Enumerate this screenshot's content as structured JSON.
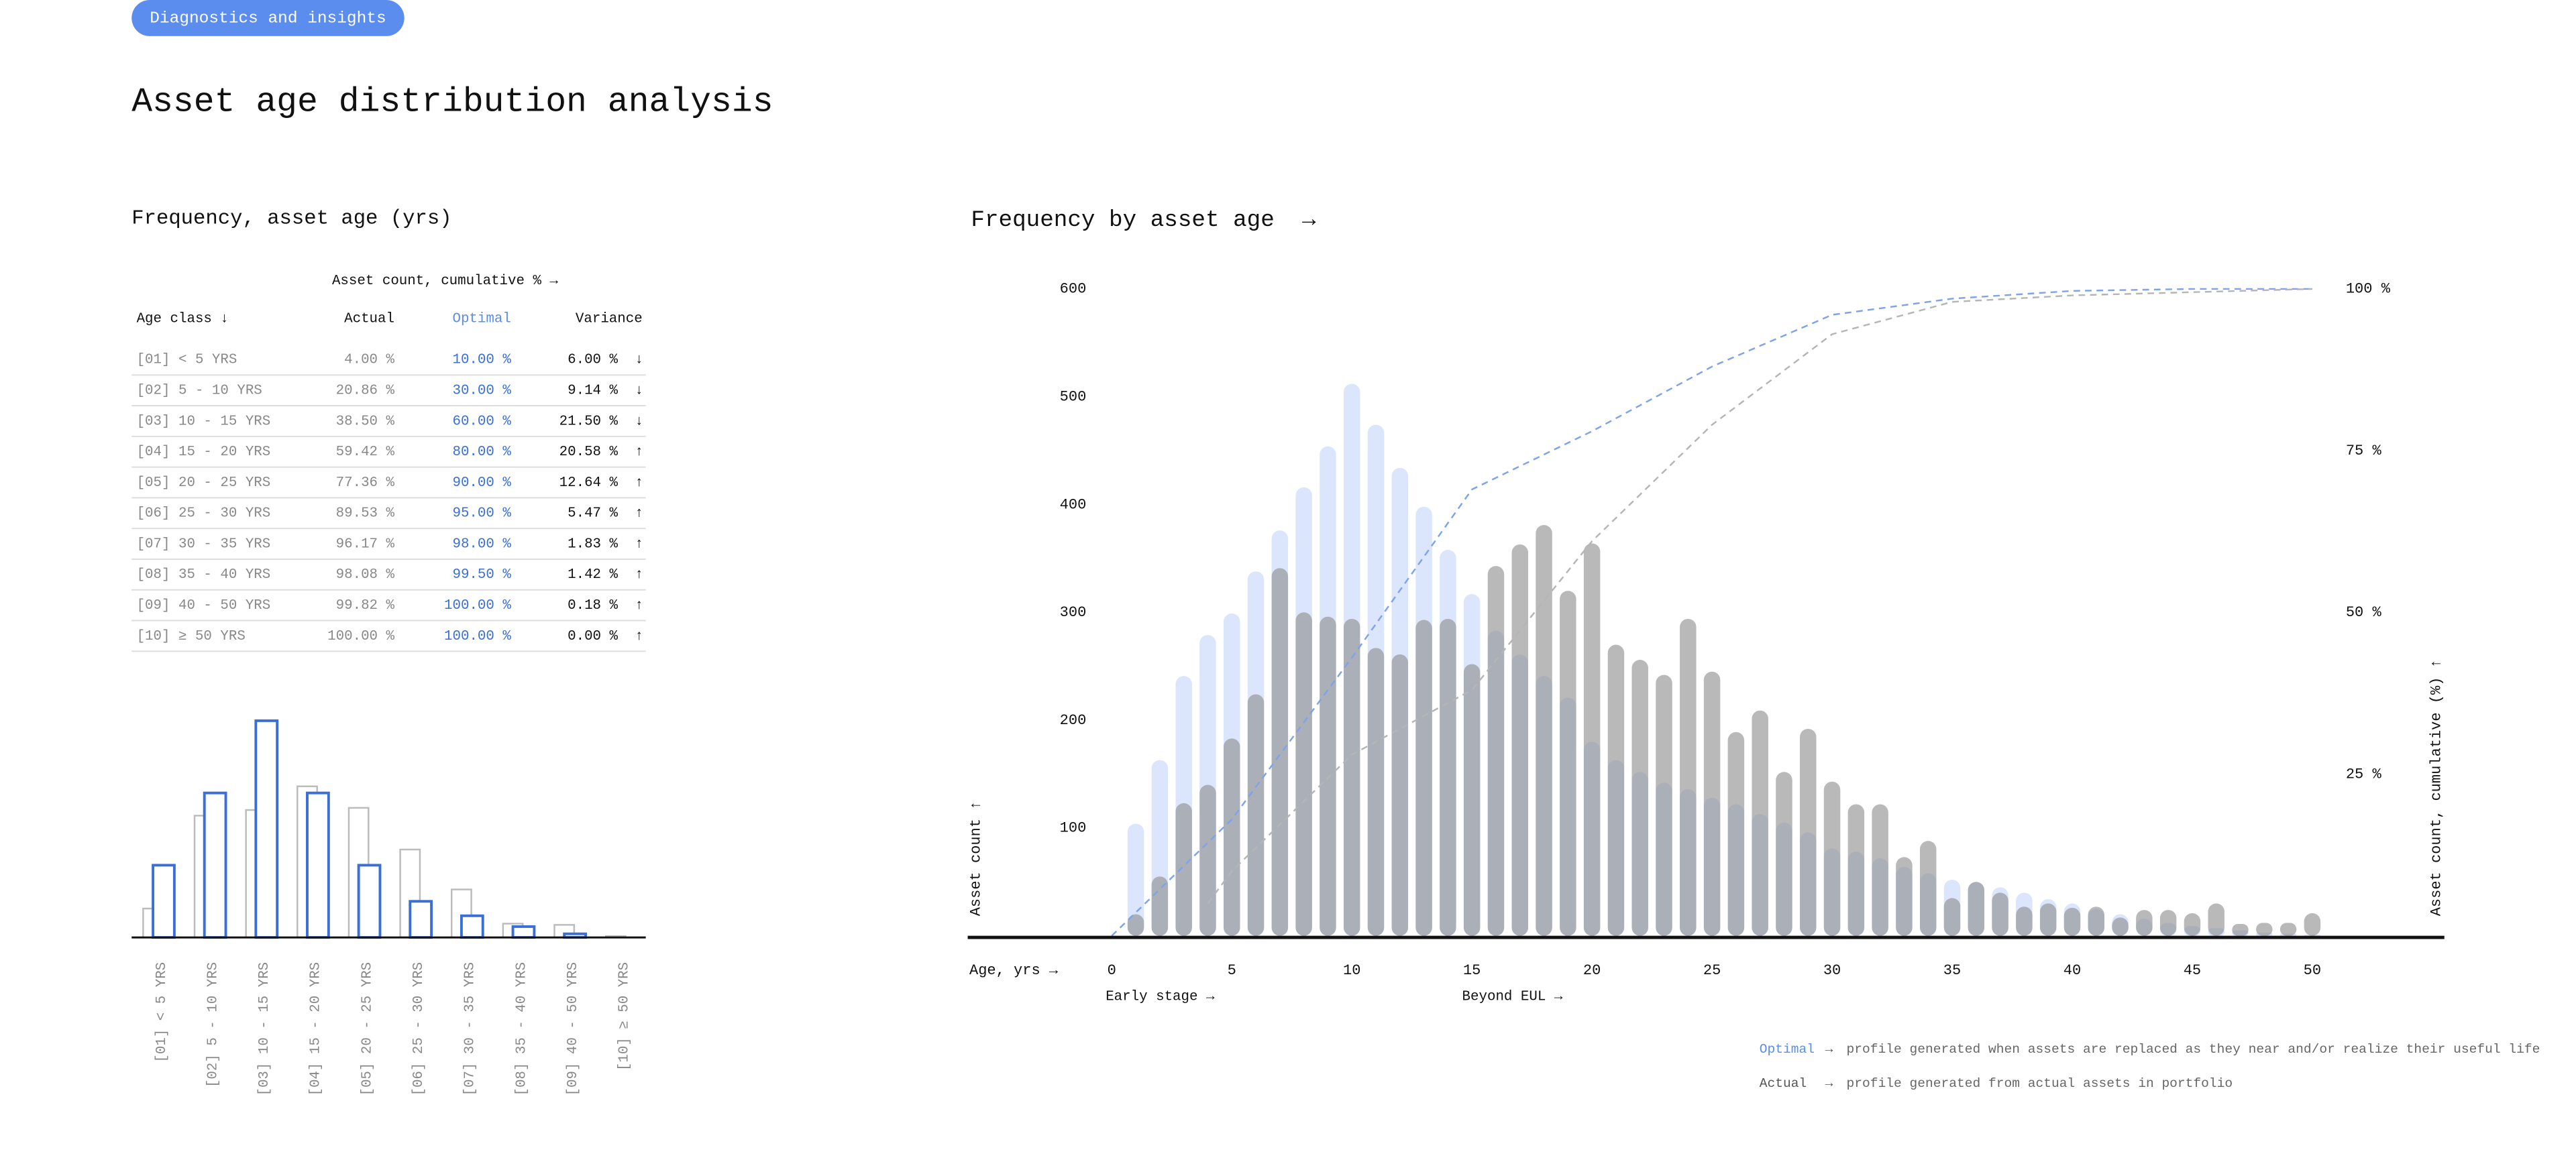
{
  "header": {
    "tag": "Diagnostics and insights",
    "title": "Asset age distribution analysis"
  },
  "table": {
    "title": "Frequency, asset age (yrs)",
    "caption": "Asset count, cumulative % →",
    "columns": [
      "Age class ↓",
      "Actual",
      "Optimal",
      "Variance"
    ],
    "rows": [
      [
        "[01] < 5 YRS",
        "4.00 %",
        "10.00 %",
        "6.00 %",
        "↓"
      ],
      [
        "[02] 5 - 10 YRS",
        "20.86 %",
        "30.00 %",
        "9.14 %",
        "↓"
      ],
      [
        "[03] 10 - 15 YRS",
        "38.50 %",
        "60.00 %",
        "21.50 %",
        "↓"
      ],
      [
        "[04] 15 - 20 YRS",
        "59.42 %",
        "80.00 %",
        "20.58 %",
        "↑"
      ],
      [
        "[05] 20 - 25 YRS",
        "77.36 %",
        "90.00 %",
        "12.64 %",
        "↑"
      ],
      [
        "[06] 25 - 30 YRS",
        "89.53 %",
        "95.00 %",
        "5.47 %",
        "↑"
      ],
      [
        "[07] 30 - 35 YRS",
        "96.17 %",
        "98.00 %",
        "1.83 %",
        "↑"
      ],
      [
        "[08] 35 - 40 YRS",
        "98.08 %",
        "99.50 %",
        "1.42 %",
        "↑"
      ],
      [
        "[09] 40 - 50 YRS",
        "99.82 %",
        "100.00 %",
        "0.18 %",
        "↑"
      ],
      [
        "[10] ≥ 50 YRS",
        "100.00 %",
        "100.00 %",
        "0.00 %",
        "↑"
      ]
    ]
  },
  "chart_data": [
    {
      "type": "bar",
      "categories": [
        "[01] < 5 YRS",
        "[02] 5 - 10 YRS",
        "[03] 10 - 15 YRS",
        "[04] 15 - 20 YRS",
        "[05] 20 - 25 YRS",
        "[06] 25 - 30 YRS",
        "[07] 30 - 35 YRS",
        "[08] 35 - 40 YRS",
        "[09] 40 - 50 YRS",
        "[10] ≥ 50 YRS"
      ],
      "series": [
        {
          "color": "#bbbbbb",
          "values": [
            4.0,
            16.86,
            17.64,
            20.92,
            17.94,
            12.17,
            6.64,
            1.91,
            1.74,
            0.18
          ]
        },
        {
          "color": "#3b6fd8",
          "values": [
            10,
            20,
            30,
            20,
            10,
            5,
            3,
            1.5,
            0.5,
            0
          ]
        }
      ],
      "ylim": [
        0,
        30
      ]
    },
    {
      "type": "bar",
      "title": "Frequency by asset age  →",
      "xlabel": "Age, yrs →",
      "ylabel": "Asset count ↑",
      "y2label": "Asset count, cumulative (%) ↑",
      "annotations": [
        "Early stage →",
        "Beyond EUL →"
      ],
      "x": [
        1,
        2,
        3,
        4,
        5,
        6,
        7,
        8,
        9,
        10,
        11,
        12,
        13,
        14,
        15,
        16,
        17,
        18,
        19,
        20,
        21,
        22,
        23,
        24,
        25,
        26,
        27,
        28,
        29,
        30,
        31,
        32,
        33,
        34,
        35,
        36,
        37,
        38,
        39,
        40,
        41,
        42,
        43,
        44,
        45,
        46,
        47,
        48,
        49,
        50
      ],
      "series": [
        {
          "name": "Optimal",
          "color": "#dbe5fb",
          "values": [
            104,
            163,
            241,
            279,
            299,
            338,
            376,
            416,
            454,
            512,
            474,
            434,
            398,
            358,
            317,
            283,
            261,
            241,
            221,
            180,
            163,
            152,
            142,
            136,
            128,
            122,
            113,
            105,
            96,
            81,
            78,
            72,
            64,
            58,
            52,
            50,
            45,
            40,
            34,
            30,
            25,
            20,
            16,
            12,
            9,
            7,
            5,
            3,
            2,
            1
          ]
        },
        {
          "name": "Actual",
          "color": "#8a8a8a",
          "values": [
            20,
            55,
            123,
            140,
            183,
            224,
            341,
            300,
            296,
            294,
            267,
            261,
            293,
            294,
            252,
            343,
            363,
            381,
            320,
            364,
            270,
            256,
            242,
            294,
            245,
            189,
            209,
            152,
            192,
            143,
            122,
            122,
            73,
            88,
            35,
            50,
            40,
            27,
            30,
            26,
            27,
            17,
            24,
            24,
            21,
            30,
            11,
            12,
            12,
            21
          ]
        },
        {
          "type": "line",
          "axis": "y2",
          "color": "#7ea3ea",
          "x": [
            0,
            5,
            10,
            15,
            20,
            25,
            30,
            35,
            40,
            45,
            50
          ],
          "values": [
            0,
            18,
            43,
            69,
            78,
            88,
            96,
            98.5,
            99.7,
            100,
            100
          ]
        },
        {
          "type": "line",
          "axis": "y2",
          "color": "#b5b5b5",
          "x": [
            4,
            5,
            10,
            15,
            20,
            25,
            30,
            35,
            40,
            45,
            50
          ],
          "values": [
            5,
            10,
            28,
            38,
            61,
            79,
            93,
            98,
            99,
            99.5,
            100
          ]
        }
      ],
      "legend_arrow": "→",
      "legend_notes": [
        "profile generated when assets are replaced as they near and/or realize their useful life",
        "profile generated from actual assets in portfolio"
      ],
      "xlim": [
        -6,
        55.5
      ],
      "xticks": [
        0,
        5,
        10,
        15,
        20,
        25,
        30,
        35,
        40,
        45,
        50
      ],
      "ylim": [
        0,
        600
      ],
      "yticks": [
        100,
        200,
        300,
        400,
        500,
        600
      ],
      "y2lim": [
        0,
        100
      ],
      "y2ticks": [
        {
          "value": 25,
          "label": "25 %"
        },
        {
          "value": 50,
          "label": "50 %"
        },
        {
          "value": 75,
          "label": "75 %"
        },
        {
          "value": 100,
          "label": "100 %"
        }
      ],
      "grid": false
    }
  ]
}
